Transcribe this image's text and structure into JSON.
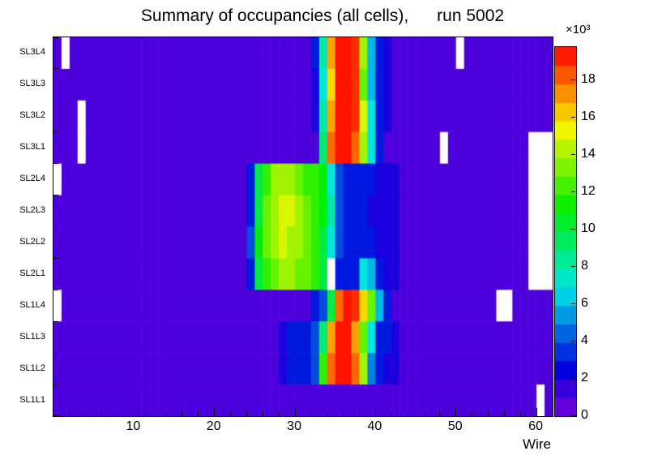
{
  "title": "Summary of occupancies (all cells),      run 5002",
  "axes": {
    "x_label": "Wire",
    "x_ticks": [
      10,
      20,
      30,
      40,
      50,
      60
    ],
    "x_min": 0,
    "x_max": 62,
    "y_labels_top_to_bottom": [
      "SL3L4",
      "SL3L3",
      "SL3L2",
      "SL3L1",
      "SL2L4",
      "SL2L3",
      "SL2L2",
      "SL2L1",
      "SL1L4",
      "SL1L3",
      "SL1L2",
      "SL1L1"
    ]
  },
  "colorbar": {
    "unit_label": "×10³",
    "ticks": [
      0,
      2,
      4,
      6,
      8,
      10,
      12,
      14,
      16,
      18
    ],
    "vmin": 0,
    "vmax": 19.8,
    "levels": 20,
    "palette": "rainbow-violet-to-red",
    "empty_bin_color": "#ffffff"
  },
  "chart_data": {
    "type": "heatmap",
    "title": "Summary of occupancies (all cells),      run 5002",
    "xlabel": "Wire",
    "values_unit": "10^3 counts",
    "null_means": "empty bin (rendered white)",
    "wires": "1..62",
    "rows_top_to_bottom": [
      "SL3L4",
      "SL3L3",
      "SL3L2",
      "SL3L1",
      "SL2L4",
      "SL2L3",
      "SL2L2",
      "SL2L1",
      "SL1L4",
      "SL1L3",
      "SL1L2",
      "SL1L1"
    ],
    "matrix": [
      [
        1,
        null,
        1,
        1,
        1,
        1,
        1,
        1,
        1,
        1,
        1,
        1,
        1,
        1,
        1,
        1,
        1,
        1,
        1,
        1,
        1,
        1,
        1,
        1,
        1,
        1,
        1,
        1,
        1,
        1,
        1,
        1,
        3,
        8,
        17,
        19.5,
        19.5,
        19,
        14,
        6,
        3,
        2,
        1,
        1,
        1,
        1,
        1,
        1,
        1,
        1,
        null,
        1,
        1,
        1,
        1,
        1,
        1,
        1,
        1,
        1,
        1,
        1
      ],
      [
        1,
        1,
        1,
        1,
        1,
        1,
        1,
        1,
        1,
        1,
        1,
        1,
        1,
        1,
        1,
        1,
        1,
        1,
        1,
        1,
        1,
        1,
        1,
        1,
        1,
        1,
        1,
        1,
        1,
        1,
        1,
        1,
        2,
        7,
        16,
        19.5,
        19.5,
        19,
        13,
        6,
        3,
        2,
        1,
        1,
        1,
        1,
        1,
        1,
        1,
        1,
        1,
        1,
        1,
        1,
        1,
        1,
        1,
        1,
        1,
        1,
        1,
        1
      ],
      [
        1,
        1,
        1,
        null,
        1,
        1,
        1,
        1,
        1,
        1,
        1,
        1,
        1,
        1,
        1,
        1,
        1,
        1,
        1,
        1,
        1,
        1,
        1,
        1,
        1,
        1,
        1,
        1,
        1,
        1,
        1,
        1,
        2,
        8,
        17,
        19.5,
        19.5,
        19,
        15,
        7,
        3,
        2,
        1,
        1,
        1,
        1,
        1,
        1,
        1,
        1,
        1,
        1,
        1,
        1,
        1,
        1,
        1,
        1,
        1,
        1,
        1,
        1
      ],
      [
        1,
        1,
        1,
        null,
        1,
        1,
        1,
        1,
        1,
        1,
        1,
        1,
        1,
        1,
        1,
        1,
        1,
        1,
        1,
        1,
        1,
        1,
        1,
        1,
        1,
        1,
        1,
        1,
        1,
        1,
        1,
        1,
        1,
        9,
        18,
        19.5,
        19.5,
        18,
        14,
        7,
        3,
        1,
        1,
        1,
        1,
        1,
        1,
        1,
        null,
        1,
        1,
        1,
        1,
        1,
        1,
        1,
        1,
        1,
        1,
        null,
        null,
        null
      ],
      [
        null,
        1,
        1,
        1,
        1,
        1,
        1,
        1,
        1,
        1,
        1,
        1,
        1,
        1,
        1,
        1,
        1,
        1,
        1,
        1,
        1,
        1,
        1,
        1,
        3,
        10,
        12,
        14,
        14,
        14,
        13,
        12,
        12,
        11,
        7,
        4,
        3,
        3,
        3,
        3,
        2,
        2,
        2,
        1,
        1,
        1,
        1,
        1,
        1,
        1,
        1,
        1,
        1,
        1,
        1,
        1,
        1,
        1,
        1,
        null,
        null,
        null
      ],
      [
        1,
        1,
        1,
        1,
        1,
        1,
        1,
        1,
        1,
        1,
        1,
        1,
        1,
        1,
        1,
        1,
        1,
        1,
        1,
        1,
        1,
        1,
        1,
        1,
        3,
        10,
        13,
        14,
        15,
        15,
        14,
        13,
        12,
        11,
        8,
        4,
        3,
        3,
        3,
        2,
        2,
        2,
        2,
        1,
        1,
        1,
        1,
        1,
        1,
        1,
        1,
        1,
        1,
        1,
        1,
        1,
        1,
        1,
        1,
        null,
        null,
        null
      ],
      [
        1,
        1,
        1,
        1,
        1,
        1,
        1,
        1,
        1,
        1,
        1,
        1,
        1,
        1,
        1,
        1,
        1,
        1,
        1,
        1,
        1,
        1,
        1,
        1,
        4,
        11,
        13,
        14,
        15,
        14,
        14,
        13,
        12,
        10,
        7,
        4,
        3,
        3,
        3,
        3,
        2,
        2,
        2,
        1,
        1,
        1,
        1,
        1,
        1,
        1,
        1,
        1,
        1,
        1,
        1,
        1,
        1,
        1,
        1,
        null,
        null,
        null
      ],
      [
        1,
        1,
        1,
        1,
        1,
        1,
        1,
        1,
        1,
        1,
        1,
        1,
        1,
        1,
        1,
        1,
        1,
        1,
        1,
        1,
        1,
        1,
        1,
        1,
        3,
        10,
        12,
        13,
        14,
        14,
        13,
        13,
        12,
        10,
        null,
        3,
        3,
        3,
        7,
        6,
        3,
        2,
        2,
        1,
        1,
        1,
        1,
        1,
        1,
        1,
        1,
        1,
        1,
        1,
        1,
        1,
        1,
        1,
        1,
        null,
        null,
        null
      ],
      [
        null,
        1,
        1,
        1,
        1,
        1,
        1,
        1,
        1,
        1,
        1,
        1,
        1,
        1,
        1,
        1,
        1,
        1,
        1,
        1,
        1,
        1,
        1,
        1,
        1,
        1,
        1,
        1,
        1,
        1,
        1,
        1,
        3,
        4,
        10,
        18,
        19.5,
        19,
        16,
        13,
        6,
        3,
        1,
        1,
        1,
        1,
        1,
        1,
        1,
        1,
        1,
        1,
        1,
        1,
        1,
        null,
        null,
        1,
        1,
        1,
        1,
        1
      ],
      [
        1,
        1,
        1,
        1,
        1,
        1,
        1,
        1,
        1,
        1,
        1,
        1,
        1,
        1,
        1,
        1,
        1,
        1,
        1,
        1,
        1,
        1,
        1,
        1,
        1,
        1,
        1,
        1,
        2,
        3,
        3,
        3,
        4,
        9,
        17,
        19.5,
        19.5,
        17,
        13,
        7,
        3,
        3,
        2,
        1,
        1,
        1,
        1,
        1,
        1,
        1,
        1,
        1,
        1,
        1,
        1,
        1,
        1,
        1,
        1,
        1,
        1,
        1
      ],
      [
        1,
        1,
        1,
        1,
        1,
        1,
        1,
        1,
        1,
        1,
        1,
        1,
        1,
        1,
        1,
        1,
        1,
        1,
        1,
        1,
        1,
        1,
        1,
        1,
        1,
        1,
        1,
        1,
        2,
        3,
        3,
        3,
        4,
        12,
        18,
        19.5,
        19.5,
        18,
        14,
        5,
        3,
        2,
        2,
        1,
        1,
        1,
        1,
        1,
        1,
        1,
        1,
        1,
        1,
        1,
        1,
        1,
        1,
        1,
        1,
        1,
        1,
        1
      ],
      [
        1,
        1,
        1,
        1,
        1,
        1,
        1,
        1,
        1,
        1,
        1,
        1,
        1,
        1,
        1,
        1,
        1,
        1,
        1,
        1,
        1,
        1,
        1,
        1,
        1,
        1,
        1,
        1,
        1,
        1,
        1,
        1,
        1,
        1,
        1,
        1,
        1,
        1,
        1,
        1,
        1,
        1,
        1,
        1,
        1,
        1,
        1,
        1,
        1,
        1,
        1,
        1,
        1,
        1,
        1,
        1,
        1,
        1,
        1,
        1,
        null,
        1
      ]
    ]
  }
}
